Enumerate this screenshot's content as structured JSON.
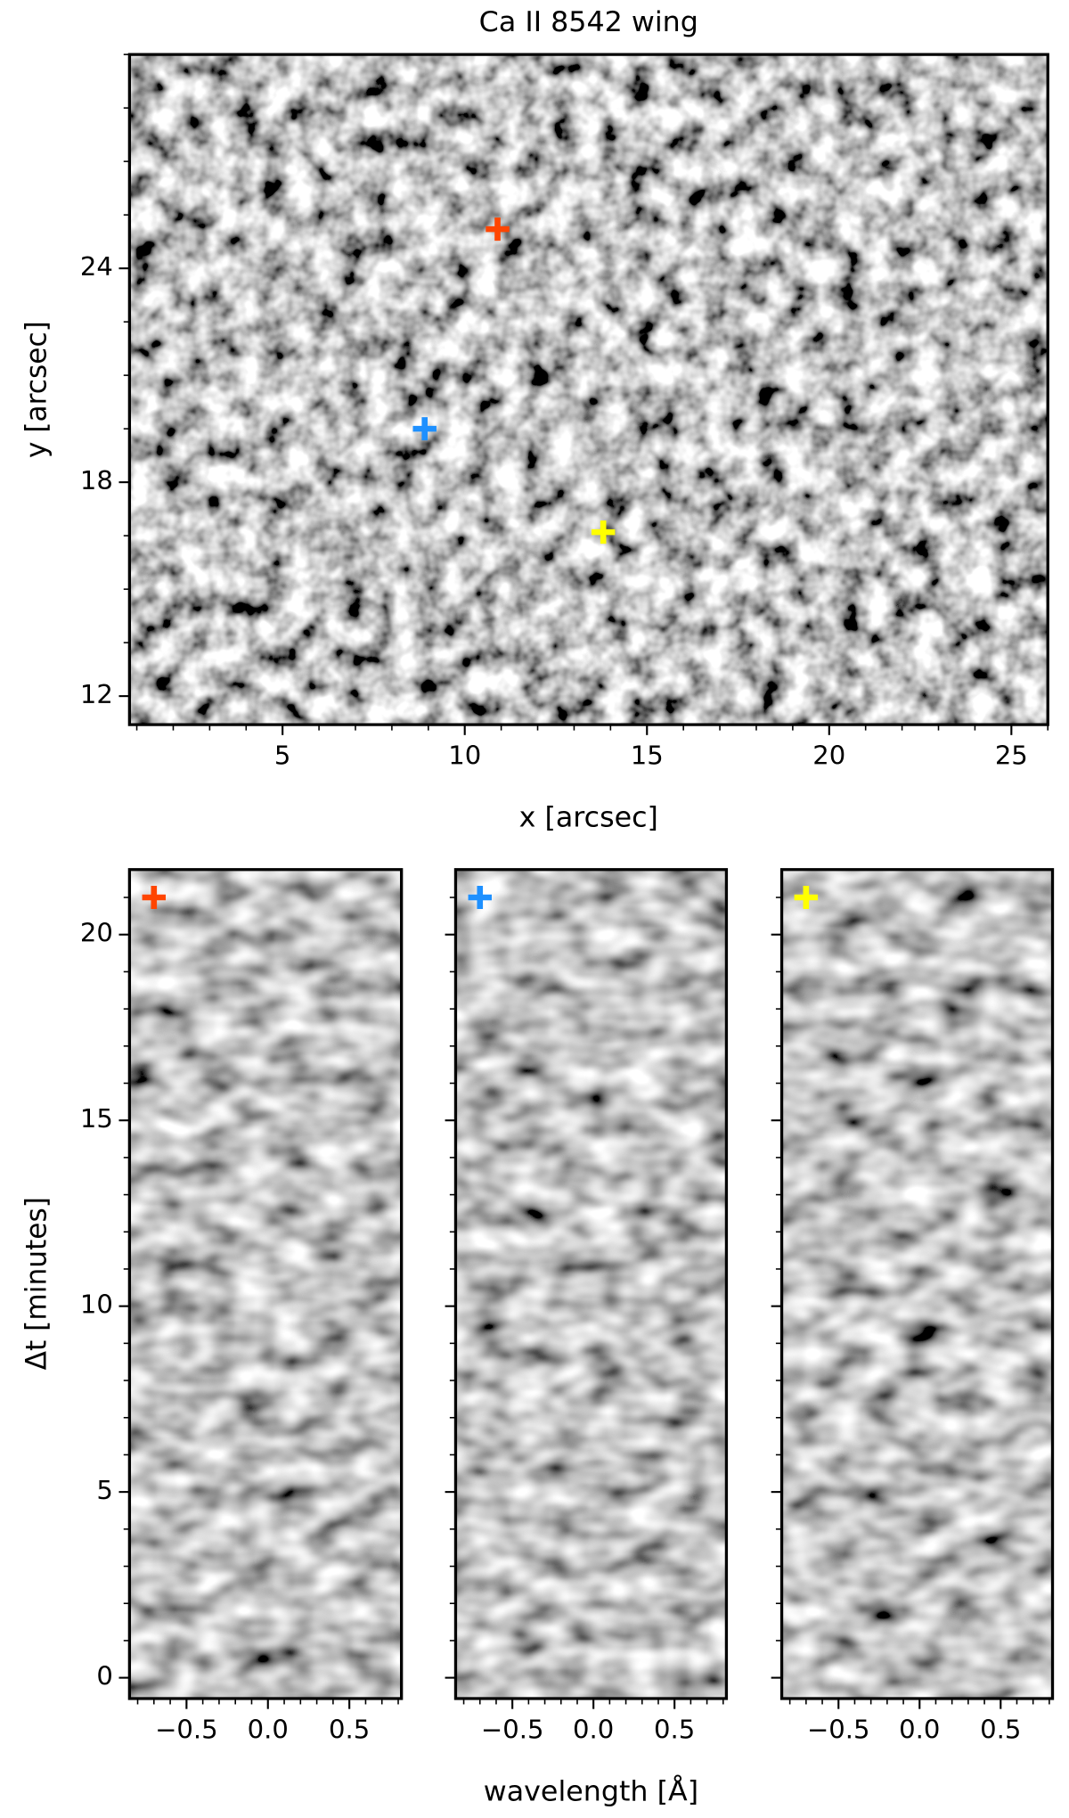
{
  "chart_data": [
    {
      "type": "image",
      "title": "Ca II 8542 wing",
      "xlabel": "x [arcsec]",
      "ylabel": "y [arcsec]",
      "xlim": [
        0.8,
        26.0
      ],
      "ylim": [
        11.2,
        30.0
      ],
      "xticks": [
        5,
        10,
        15,
        20,
        25
      ],
      "yticks": [
        12,
        18,
        24
      ],
      "xminor": 1,
      "yminor": 1.5,
      "markers": [
        {
          "x": 10.9,
          "y": 25.1,
          "color": "#ff4500"
        },
        {
          "x": 8.9,
          "y": 19.5,
          "color": "#1e90ff"
        },
        {
          "x": 13.8,
          "y": 16.6,
          "color": "#ffff00"
        }
      ]
    },
    {
      "type": "image",
      "ylabel": "Δt [minutes]",
      "xlim": [
        -0.85,
        0.82
      ],
      "ylim": [
        -0.56,
        21.75
      ],
      "xticks": [
        {
          "value": -0.5,
          "label": "−0.5"
        },
        {
          "value": 0,
          "label": "0.0"
        },
        {
          "value": 0.5,
          "label": "0.5"
        }
      ],
      "yticks": [
        0,
        5,
        10,
        15,
        20
      ],
      "xminor": 0.1,
      "yminor": 1,
      "markers": [
        {
          "x": -0.7,
          "y": 21.0,
          "color": "#ff4500"
        }
      ]
    },
    {
      "type": "image",
      "xlabel": "wavelength [Å]",
      "xlim": [
        -0.85,
        0.82
      ],
      "ylim": [
        -0.56,
        21.75
      ],
      "xticks": [
        {
          "value": -0.5,
          "label": "−0.5"
        },
        {
          "value": 0,
          "label": "0.0"
        },
        {
          "value": 0.5,
          "label": "0.5"
        }
      ],
      "xminor": 0.1,
      "yminor": 1,
      "markers": [
        {
          "x": -0.7,
          "y": 21.0,
          "color": "#1e90ff"
        }
      ]
    },
    {
      "type": "image",
      "xlim": [
        -0.85,
        0.82
      ],
      "ylim": [
        -0.56,
        21.75
      ],
      "xticks": [
        {
          "value": -0.5,
          "label": "−0.5"
        },
        {
          "value": 0,
          "label": "0.0"
        },
        {
          "value": 0.5,
          "label": "0.5"
        }
      ],
      "xminor": 0.1,
      "yminor": 1,
      "markers": [
        {
          "x": -0.7,
          "y": 21.0,
          "color": "#ffff00"
        }
      ]
    }
  ]
}
